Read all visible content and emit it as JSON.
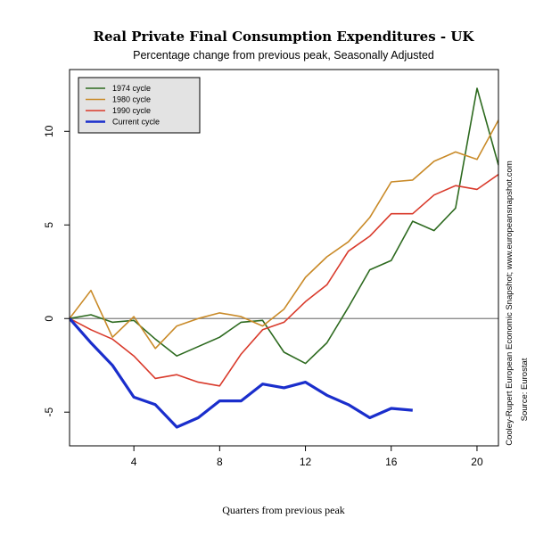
{
  "chart_data": {
    "type": "line",
    "title": "Real Private Final Consumption Expenditures - UK",
    "subtitle": "Percentage change from previous peak, Seasonally Adjusted",
    "xlabel": "Quarters from previous peak",
    "ylabel": "",
    "xlim": [
      1,
      21
    ],
    "ylim": [
      -6.8,
      13.3
    ],
    "x_ticks": [
      4,
      8,
      12,
      16,
      20
    ],
    "y_ticks": [
      -5,
      0,
      5,
      10
    ],
    "reference_line_y": 0,
    "grid": false,
    "legend_position": "top-left",
    "x": [
      1,
      2,
      3,
      4,
      5,
      6,
      7,
      8,
      9,
      10,
      11,
      12,
      13,
      14,
      15,
      16,
      17,
      18,
      19,
      20,
      21
    ],
    "series": [
      {
        "name": "1974 cycle",
        "color": "#2d6a1f",
        "values": [
          0,
          0.2,
          -0.2,
          -0.1,
          -1.1,
          -2.0,
          -1.5,
          -1.0,
          -0.2,
          -0.1,
          -1.8,
          -2.4,
          -1.3,
          0.6,
          2.6,
          3.1,
          5.2,
          4.7,
          5.9,
          12.3,
          8.2
        ]
      },
      {
        "name": "1980 cycle",
        "color": "#c98a28",
        "values": [
          0,
          1.5,
          -1.0,
          0.1,
          -1.6,
          -0.4,
          0.0,
          0.3,
          0.1,
          -0.4,
          0.5,
          2.2,
          3.3,
          4.1,
          5.4,
          7.3,
          7.4,
          8.4,
          8.9,
          8.5,
          10.6
        ]
      },
      {
        "name": "1990 cycle",
        "color": "#d93a2b",
        "values": [
          0,
          -0.6,
          -1.1,
          -2.0,
          -3.2,
          -3.0,
          -3.4,
          -3.6,
          -1.9,
          -0.6,
          -0.2,
          0.9,
          1.8,
          3.6,
          4.4,
          5.6,
          5.6,
          6.6,
          7.1,
          6.9,
          7.7
        ]
      },
      {
        "name": "Current cycle",
        "color": "#1a2ecc",
        "values": [
          0,
          -1.3,
          -2.5,
          -4.2,
          -4.6,
          -5.8,
          -5.3,
          -4.4,
          -4.4,
          -3.5,
          -3.7,
          -3.4,
          -4.1,
          -4.6,
          -5.3,
          -4.8,
          -4.9,
          null,
          null,
          null,
          null
        ]
      }
    ],
    "side_note_1": "Cooley-Rupert European Economic Snapshot; www.europeansnapshot.com",
    "side_note_2": "Source: Eurostat"
  }
}
